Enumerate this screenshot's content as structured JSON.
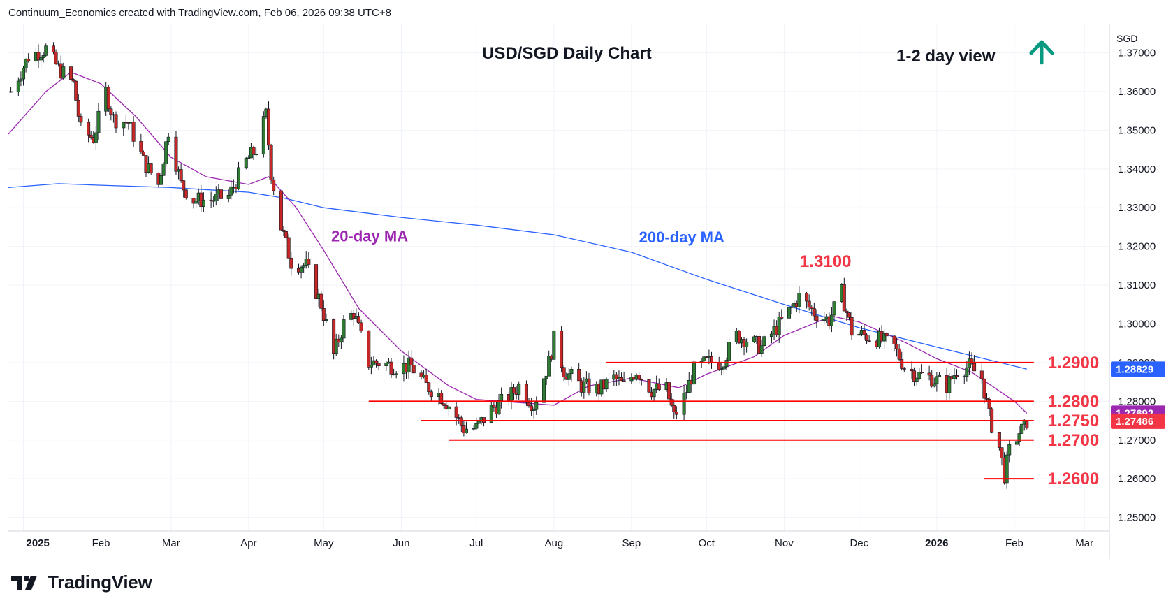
{
  "header": {
    "credit": "Continuum_Economics created with TradingView.com, Feb 06, 2026 09:38 UTC+8"
  },
  "footer": {
    "brand": "TradingView"
  },
  "chart_data": {
    "type": "candlestick",
    "title": "USD/SGD Daily Chart",
    "view_label": "1-2 day view",
    "view_direction": "up",
    "currency": "SGD",
    "x_tick_labels": [
      "2025",
      "Feb",
      "Mar",
      "Apr",
      "May",
      "Jun",
      "Jul",
      "Aug",
      "Sep",
      "Oct",
      "Nov",
      "Dec",
      "2026",
      "Feb",
      "Mar"
    ],
    "x_tick_dates": [
      "2025-01-01",
      "2025-02-01",
      "2025-03-01",
      "2025-04-01",
      "2025-05-01",
      "2025-06-01",
      "2025-07-01",
      "2025-08-01",
      "2025-09-01",
      "2025-10-01",
      "2025-11-01",
      "2025-12-01",
      "2026-01-01",
      "2026-02-01",
      "2026-03-01"
    ],
    "x_range": [
      "2024-12-26",
      "2026-03-11"
    ],
    "y_range": [
      1.2465,
      1.3775
    ],
    "y_ticks": [
      1.25,
      1.26,
      1.27,
      1.28,
      1.29,
      1.3,
      1.31,
      1.32,
      1.33,
      1.34,
      1.35,
      1.36,
      1.37
    ],
    "y_tick_labels": [
      "1.25000",
      "1.26000",
      "1.27000",
      "1.28000",
      "1.29000",
      "1.30000",
      "1.31000",
      "1.32000",
      "1.33000",
      "1.34000",
      "1.35000",
      "1.36000",
      "1.37000"
    ],
    "price_badges": [
      {
        "value": 1.28829,
        "label": "1.28829",
        "color": "#2962ff"
      },
      {
        "value": 1.27692,
        "label": "1.27692",
        "color": "#9c27b0"
      },
      {
        "value": 1.27486,
        "label": "1.27486",
        "color": "#f23645"
      }
    ],
    "levels": [
      {
        "value": 1.29,
        "label": "1.2900",
        "start": "2025-08-22",
        "end": "2026-02-06"
      },
      {
        "value": 1.28,
        "label": "1.2800",
        "start": "2025-05-19",
        "end": "2026-02-06"
      },
      {
        "value": 1.275,
        "label": "1.2750",
        "start": "2025-06-09",
        "end": "2026-02-06"
      },
      {
        "value": 1.27,
        "label": "1.2700",
        "start": "2025-06-20",
        "end": "2026-02-06"
      },
      {
        "value": 1.26,
        "label": "1.2600",
        "start": "2026-01-20",
        "end": "2026-02-06"
      }
    ],
    "high_annotation": {
      "label": "1.3100",
      "date": "2025-11-12",
      "value": 1.3115
    },
    "ma_labels": [
      {
        "label": "20-day MA",
        "color": "#9c27b0"
      },
      {
        "label": "200-day MA",
        "color": "#2962ff"
      }
    ],
    "ma200": [
      [
        "2024-12-26",
        1.3352
      ],
      [
        "2025-01-15",
        1.3362
      ],
      [
        "2025-02-01",
        1.3358
      ],
      [
        "2025-03-01",
        1.3352
      ],
      [
        "2025-04-01",
        1.334
      ],
      [
        "2025-04-15",
        1.3325
      ],
      [
        "2025-05-01",
        1.33
      ],
      [
        "2025-06-01",
        1.3275
      ],
      [
        "2025-07-01",
        1.3255
      ],
      [
        "2025-08-01",
        1.323
      ],
      [
        "2025-09-01",
        1.3185
      ],
      [
        "2025-10-01",
        1.3115
      ],
      [
        "2025-11-01",
        1.305
      ],
      [
        "2025-12-01",
        1.299
      ],
      [
        "2026-01-01",
        1.294
      ],
      [
        "2026-02-06",
        1.2883
      ]
    ],
    "ma20": [
      [
        "2024-12-26",
        1.349
      ],
      [
        "2025-01-10",
        1.36
      ],
      [
        "2025-01-20",
        1.365
      ],
      [
        "2025-02-01",
        1.362
      ],
      [
        "2025-02-15",
        1.3535
      ],
      [
        "2025-03-01",
        1.343
      ],
      [
        "2025-03-15",
        1.338
      ],
      [
        "2025-04-01",
        1.336
      ],
      [
        "2025-04-09",
        1.338
      ],
      [
        "2025-04-20",
        1.33
      ],
      [
        "2025-05-01",
        1.319
      ],
      [
        "2025-05-15",
        1.304
      ],
      [
        "2025-06-01",
        1.293
      ],
      [
        "2025-06-20",
        1.284
      ],
      [
        "2025-07-01",
        1.2805
      ],
      [
        "2025-08-01",
        1.279
      ],
      [
        "2025-08-15",
        1.284
      ],
      [
        "2025-09-01",
        1.286
      ],
      [
        "2025-09-20",
        1.2835
      ],
      [
        "2025-10-01",
        1.287
      ],
      [
        "2025-10-20",
        1.2915
      ],
      [
        "2025-11-01",
        1.297
      ],
      [
        "2025-11-20",
        1.302
      ],
      [
        "2025-12-01",
        1.3005
      ],
      [
        "2025-12-20",
        1.295
      ],
      [
        "2026-01-01",
        1.291
      ],
      [
        "2026-01-15",
        1.2875
      ],
      [
        "2026-02-01",
        1.28
      ],
      [
        "2026-02-06",
        1.2769
      ]
    ],
    "closes": [
      [
        "2024-12-27",
        1.36
      ],
      [
        "2025-01-03",
        1.369
      ],
      [
        "2025-01-10",
        1.371
      ],
      [
        "2025-01-15",
        1.366
      ],
      [
        "2025-01-21",
        1.362
      ],
      [
        "2025-01-24",
        1.35
      ],
      [
        "2025-01-29",
        1.348
      ],
      [
        "2025-02-03",
        1.36
      ],
      [
        "2025-02-06",
        1.353
      ],
      [
        "2025-02-12",
        1.352
      ],
      [
        "2025-02-18",
        1.342
      ],
      [
        "2025-02-24",
        1.336
      ],
      [
        "2025-02-28",
        1.35
      ],
      [
        "2025-03-05",
        1.336
      ],
      [
        "2025-03-10",
        1.332
      ],
      [
        "2025-03-17",
        1.332
      ],
      [
        "2025-03-24",
        1.333
      ],
      [
        "2025-03-31",
        1.342
      ],
      [
        "2025-04-04",
        1.345
      ],
      [
        "2025-04-08",
        1.354
      ],
      [
        "2025-04-10",
        1.339
      ],
      [
        "2025-04-14",
        1.325
      ],
      [
        "2025-04-18",
        1.316
      ],
      [
        "2025-04-24",
        1.315
      ],
      [
        "2025-04-30",
        1.305
      ],
      [
        "2025-05-05",
        1.292
      ],
      [
        "2025-05-09",
        1.3
      ],
      [
        "2025-05-13",
        1.303
      ],
      [
        "2025-05-19",
        1.29
      ],
      [
        "2025-05-23",
        1.29
      ],
      [
        "2025-05-30",
        1.289
      ],
      [
        "2025-06-05",
        1.289
      ],
      [
        "2025-06-11",
        1.284
      ],
      [
        "2025-06-16",
        1.282
      ],
      [
        "2025-06-20",
        1.279
      ],
      [
        "2025-06-26",
        1.273
      ],
      [
        "2025-07-01",
        1.273
      ],
      [
        "2025-07-07",
        1.278
      ],
      [
        "2025-07-14",
        1.281
      ],
      [
        "2025-07-18",
        1.284
      ],
      [
        "2025-07-24",
        1.279
      ],
      [
        "2025-07-30",
        1.29
      ],
      [
        "2025-08-01",
        1.296
      ],
      [
        "2025-08-05",
        1.288
      ],
      [
        "2025-08-12",
        1.284
      ],
      [
        "2025-08-19",
        1.283
      ],
      [
        "2025-08-25",
        1.286
      ],
      [
        "2025-08-29",
        1.284
      ],
      [
        "2025-09-03",
        1.288
      ],
      [
        "2025-09-09",
        1.283
      ],
      [
        "2025-09-15",
        1.283
      ],
      [
        "2025-09-18",
        1.276
      ],
      [
        "2025-09-22",
        1.281
      ],
      [
        "2025-09-26",
        1.288
      ],
      [
        "2025-10-01",
        1.29
      ],
      [
        "2025-10-07",
        1.29
      ],
      [
        "2025-10-13",
        1.297
      ],
      [
        "2025-10-17",
        1.296
      ],
      [
        "2025-10-23",
        1.294
      ],
      [
        "2025-10-29",
        1.299
      ],
      [
        "2025-11-04",
        1.304
      ],
      [
        "2025-11-07",
        1.307
      ],
      [
        "2025-11-13",
        1.303
      ],
      [
        "2025-11-19",
        1.301
      ],
      [
        "2025-11-24",
        1.308
      ],
      [
        "2025-11-28",
        1.298
      ],
      [
        "2025-12-03",
        1.297
      ],
      [
        "2025-12-09",
        1.296
      ],
      [
        "2025-12-15",
        1.294
      ],
      [
        "2025-12-19",
        1.289
      ],
      [
        "2025-12-24",
        1.287
      ],
      [
        "2025-12-30",
        1.286
      ],
      [
        "2026-01-05",
        1.284
      ],
      [
        "2026-01-09",
        1.288
      ],
      [
        "2026-01-14",
        1.289
      ],
      [
        "2026-01-19",
        1.286
      ],
      [
        "2026-01-22",
        1.276
      ],
      [
        "2026-01-26",
        1.268
      ],
      [
        "2026-01-28",
        1.261
      ],
      [
        "2026-01-30",
        1.267
      ],
      [
        "2026-02-03",
        1.272
      ],
      [
        "2026-02-05",
        1.273
      ],
      [
        "2026-02-06",
        1.2749
      ]
    ]
  }
}
